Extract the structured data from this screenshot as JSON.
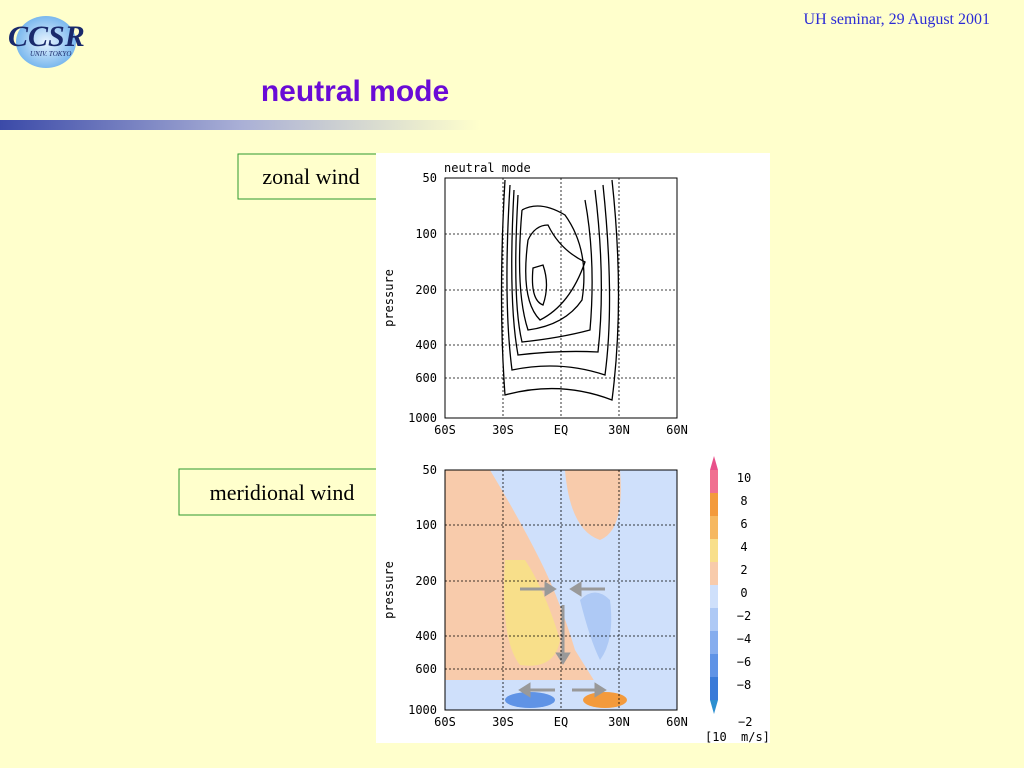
{
  "header": {
    "logo": "CCSR",
    "logo_sub": "UNIV. TOKYO",
    "event": "UH seminar, 29 August 2001"
  },
  "slide": {
    "title": "neutral mode"
  },
  "labels": [
    "zonal wind",
    "meridional wind"
  ],
  "figure": {
    "title": "neutral mode",
    "y_label": "pressure",
    "y_ticks": [
      "50",
      "100",
      "200",
      "400",
      "600",
      "1000"
    ],
    "x_ticks": [
      "60S",
      "30S",
      "EQ",
      "30N",
      "60N"
    ],
    "colorbar_ticks": [
      "10",
      "8",
      "6",
      "4",
      "2",
      "0",
      "−2",
      "−4",
      "−6",
      "−8"
    ],
    "unit_exp": "−2",
    "unit_base": "[10",
    "unit_rest": "m/s]"
  }
}
